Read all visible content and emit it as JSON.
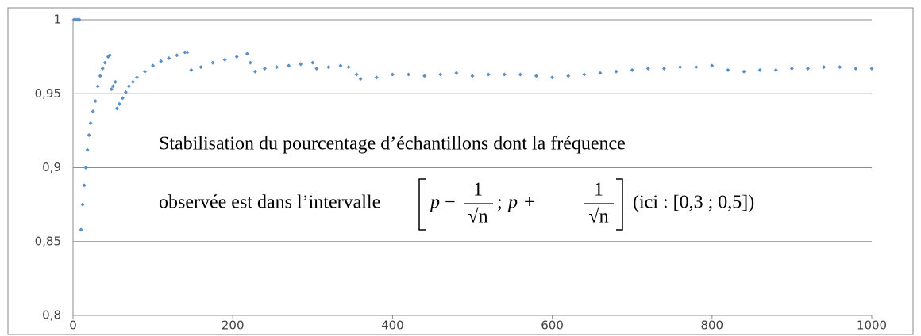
{
  "chart_data": {
    "type": "scatter",
    "color": "#5b8fc7",
    "x": [
      1,
      3,
      5,
      7,
      8,
      10,
      12,
      14,
      16,
      18,
      20,
      22,
      25,
      28,
      31,
      34,
      37,
      40,
      44,
      46,
      48,
      50,
      53,
      55,
      58,
      62,
      66,
      70,
      75,
      80,
      90,
      100,
      110,
      120,
      130,
      140,
      143,
      148,
      160,
      175,
      190,
      205,
      218,
      222,
      228,
      240,
      255,
      270,
      285,
      300,
      305,
      320,
      335,
      345,
      355,
      360,
      380,
      400,
      420,
      440,
      460,
      480,
      500,
      520,
      540,
      560,
      580,
      600,
      620,
      640,
      660,
      680,
      700,
      720,
      740,
      760,
      780,
      800,
      820,
      840,
      860,
      880,
      900,
      920,
      940,
      960,
      980,
      1000
    ],
    "values": [
      1.0,
      1.0,
      1.0,
      1.0,
      1.0,
      0.858,
      0.875,
      0.888,
      0.9,
      0.912,
      0.922,
      0.93,
      0.938,
      0.945,
      0.955,
      0.962,
      0.967,
      0.971,
      0.975,
      0.976,
      0.953,
      0.955,
      0.958,
      0.94,
      0.943,
      0.947,
      0.951,
      0.955,
      0.958,
      0.961,
      0.965,
      0.969,
      0.972,
      0.974,
      0.976,
      0.978,
      0.978,
      0.966,
      0.968,
      0.971,
      0.973,
      0.975,
      0.977,
      0.971,
      0.965,
      0.967,
      0.968,
      0.969,
      0.97,
      0.971,
      0.967,
      0.968,
      0.969,
      0.968,
      0.963,
      0.96,
      0.961,
      0.963,
      0.963,
      0.962,
      0.963,
      0.964,
      0.962,
      0.963,
      0.963,
      0.963,
      0.962,
      0.961,
      0.962,
      0.963,
      0.964,
      0.965,
      0.966,
      0.967,
      0.967,
      0.968,
      0.968,
      0.969,
      0.966,
      0.965,
      0.966,
      0.966,
      0.967,
      0.967,
      0.968,
      0.968,
      0.967,
      0.967
    ],
    "xlim": [
      0,
      1000
    ],
    "xticks": [
      0,
      200,
      400,
      600,
      800,
      1000
    ],
    "ylim": [
      0.8,
      1
    ],
    "yticks": [
      {
        "value": 0.8,
        "label": "0,8"
      },
      {
        "value": 0.85,
        "label": "0,85"
      },
      {
        "value": 0.9,
        "label": "0,9"
      },
      {
        "value": 0.95,
        "label": "0,95"
      },
      1
    ],
    "grid": true,
    "annotation": {
      "line1": "Stabilisation du pourcentage d’échantillons dont la fréquence",
      "line2": "observée est dans l’intervalle",
      "formula": {
        "left": "p",
        "minus": "−",
        "num1": "1",
        "den1": "√n",
        "sep": ";",
        "right": "p",
        "plus": "+",
        "num2": "1",
        "den2": "√n"
      },
      "note": "(ici : [0,3 ; 0,5])"
    }
  }
}
